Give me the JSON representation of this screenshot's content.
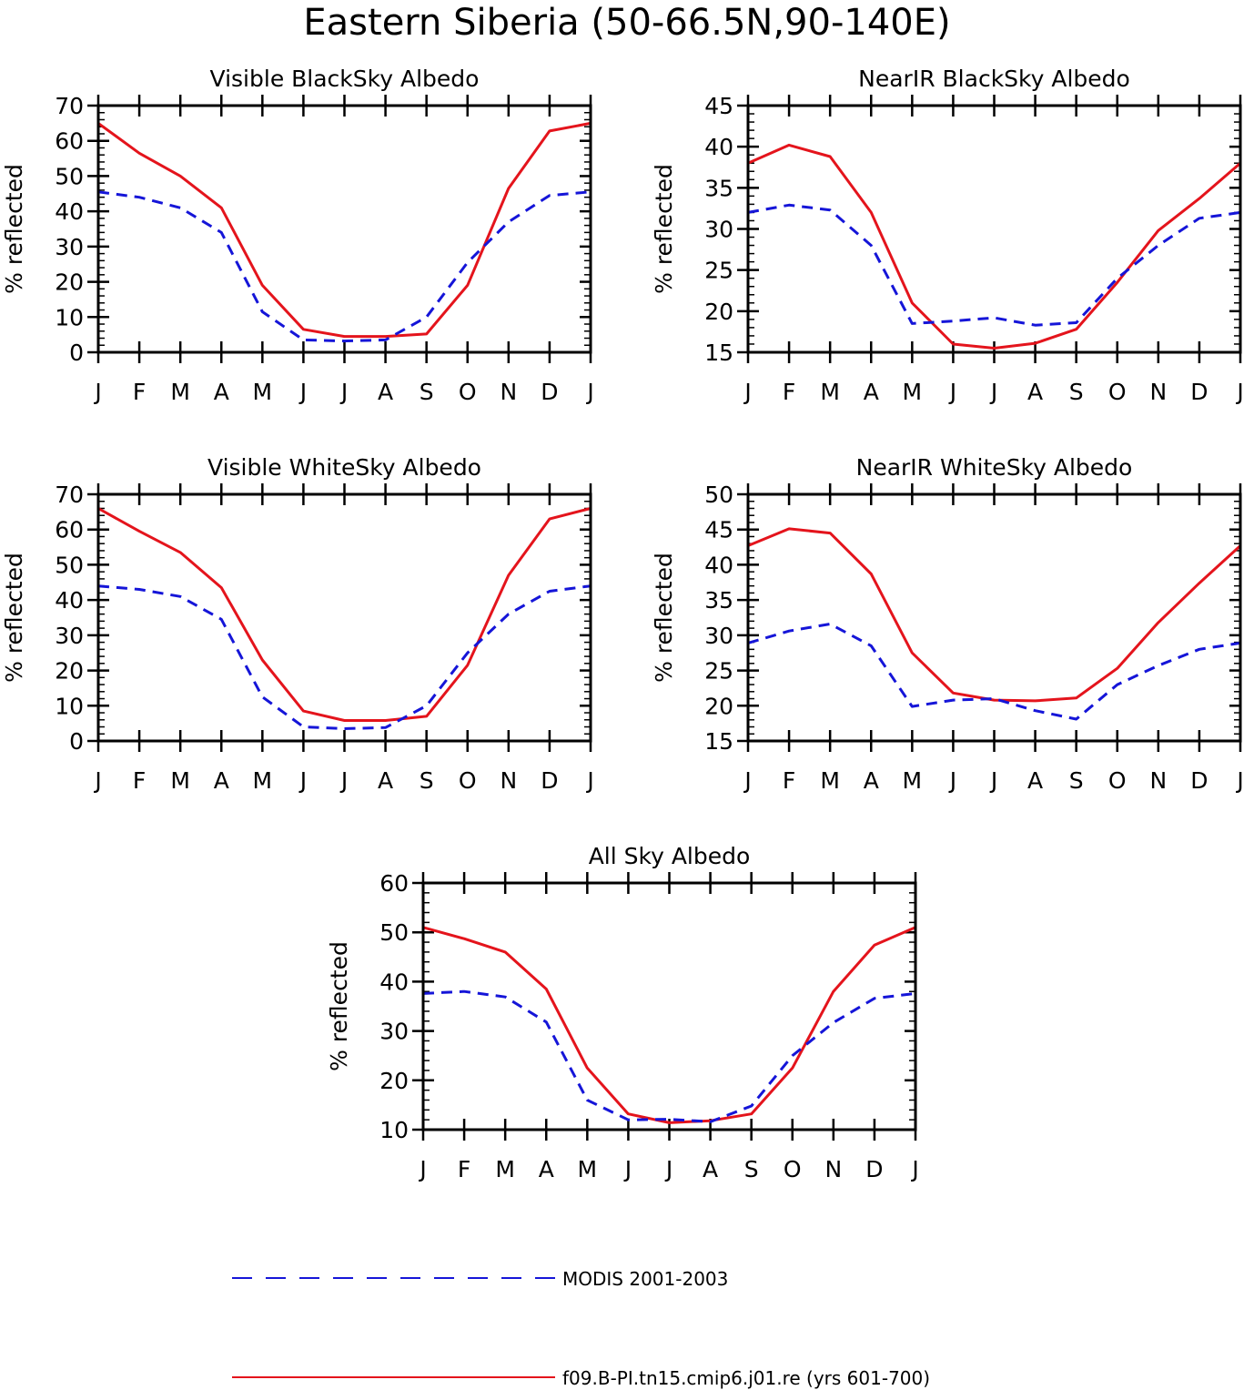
{
  "title": "Eastern Siberia (50-66.5N,90-140E)",
  "colors": {
    "model": "#e4141c",
    "obs": "#1515d8"
  },
  "legend": {
    "obs_label": "MODIS 2001-2003",
    "model_label": "f09.B-PI.tn15.cmip6.j01.re (yrs 601-700)"
  },
  "chart_data": [
    {
      "type": "line",
      "title": "Visible BlackSky Albedo",
      "ylabel": "% reflected",
      "categories": [
        "J",
        "F",
        "M",
        "A",
        "M",
        "J",
        "J",
        "A",
        "S",
        "O",
        "N",
        "D",
        "J"
      ],
      "ylim": [
        0,
        70
      ],
      "yticks": [
        0,
        10,
        20,
        30,
        40,
        50,
        60,
        70
      ],
      "series": [
        {
          "name": "f09.B-PI.tn15.cmip6.j01.re (yrs 601-700)",
          "values": [
            65,
            56.5,
            50,
            41,
            19,
            6.5,
            4.5,
            4.5,
            5.2,
            19,
            46.5,
            62.8,
            65
          ]
        },
        {
          "name": "MODIS 2001-2003",
          "values": [
            45.5,
            44,
            41,
            34,
            11.5,
            3.5,
            3.2,
            3.5,
            10,
            25.5,
            37,
            44.5,
            45.5
          ]
        }
      ]
    },
    {
      "type": "line",
      "title": "NearIR BlackSky Albedo",
      "ylabel": "% reflected",
      "categories": [
        "J",
        "F",
        "M",
        "A",
        "M",
        "J",
        "J",
        "A",
        "S",
        "O",
        "N",
        "D",
        "J"
      ],
      "ylim": [
        15,
        45
      ],
      "yticks": [
        15,
        20,
        25,
        30,
        35,
        40,
        45
      ],
      "series": [
        {
          "name": "f09.B-PI.tn15.cmip6.j01.re (yrs 601-700)",
          "values": [
            38,
            40.2,
            38.8,
            32,
            21,
            16,
            15.5,
            16.1,
            17.8,
            23.5,
            29.8,
            33.7,
            38
          ]
        },
        {
          "name": "MODIS 2001-2003",
          "values": [
            32,
            32.9,
            32.3,
            28,
            18.5,
            18.8,
            19.2,
            18.3,
            18.6,
            24,
            28,
            31.3,
            32
          ]
        }
      ]
    },
    {
      "type": "line",
      "title": "Visible WhiteSky Albedo",
      "ylabel": "% reflected",
      "categories": [
        "J",
        "F",
        "M",
        "A",
        "M",
        "J",
        "J",
        "A",
        "S",
        "O",
        "N",
        "D",
        "J"
      ],
      "ylim": [
        0,
        70
      ],
      "yticks": [
        0,
        10,
        20,
        30,
        40,
        50,
        60,
        70
      ],
      "series": [
        {
          "name": "f09.B-PI.tn15.cmip6.j01.re (yrs 601-700)",
          "values": [
            66,
            59.5,
            53.5,
            43.5,
            23,
            8.5,
            5.8,
            5.8,
            7,
            21.5,
            47,
            63,
            66
          ]
        },
        {
          "name": "MODIS 2001-2003",
          "values": [
            44,
            43,
            41,
            34.5,
            12.5,
            4,
            3.5,
            3.8,
            10,
            25,
            36,
            42.5,
            44
          ]
        }
      ]
    },
    {
      "type": "line",
      "title": "NearIR WhiteSky Albedo",
      "ylabel": "% reflected",
      "categories": [
        "J",
        "F",
        "M",
        "A",
        "M",
        "J",
        "J",
        "A",
        "S",
        "O",
        "N",
        "D",
        "J"
      ],
      "ylim": [
        15,
        50
      ],
      "yticks": [
        15,
        20,
        25,
        30,
        35,
        40,
        45,
        50
      ],
      "series": [
        {
          "name": "f09.B-PI.tn15.cmip6.j01.re (yrs 601-700)",
          "values": [
            42.7,
            45.1,
            44.5,
            38.7,
            27.5,
            21.8,
            20.8,
            20.7,
            21.1,
            25.3,
            31.8,
            37.4,
            42.7
          ]
        },
        {
          "name": "MODIS 2001-2003",
          "values": [
            28.9,
            30.6,
            31.6,
            28.5,
            19.9,
            20.8,
            21,
            19.3,
            18.1,
            23,
            25.7,
            28,
            28.9
          ]
        }
      ]
    },
    {
      "type": "line",
      "title": "All Sky Albedo",
      "ylabel": "% reflected",
      "categories": [
        "J",
        "F",
        "M",
        "A",
        "M",
        "J",
        "J",
        "A",
        "S",
        "O",
        "N",
        "D",
        "J"
      ],
      "ylim": [
        10,
        60
      ],
      "yticks": [
        10,
        20,
        30,
        40,
        50,
        60
      ],
      "series": [
        {
          "name": "f09.B-PI.tn15.cmip6.j01.re (yrs 601-700)",
          "values": [
            51,
            48.7,
            46,
            38.5,
            22.5,
            13.2,
            11.4,
            11.8,
            13.2,
            22.5,
            38,
            47.4,
            51
          ]
        },
        {
          "name": "MODIS 2001-2003",
          "values": [
            37.6,
            38,
            36.9,
            31.8,
            16,
            12,
            12.1,
            11.6,
            14.8,
            25,
            31.7,
            36.6,
            37.6
          ]
        }
      ]
    }
  ]
}
